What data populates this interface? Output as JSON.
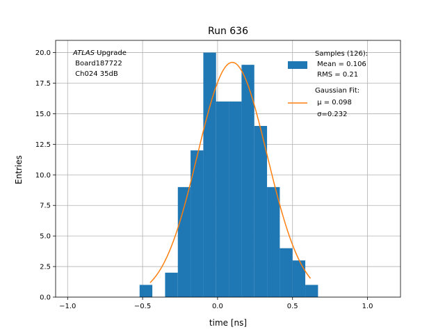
{
  "chart_data": {
    "type": "bar",
    "title": "Run 636",
    "xlabel": "time [ns]",
    "ylabel": "Entries",
    "xlim": [
      -1.08,
      1.22
    ],
    "ylim": [
      0,
      21
    ],
    "grid": true,
    "xticks": [
      -1.0,
      -0.5,
      0.0,
      0.5,
      1.0
    ],
    "xtick_labels": [
      "−1.0",
      "−0.5",
      "0.0",
      "0.5",
      "1.0"
    ],
    "yticks": [
      0,
      2.5,
      5,
      7.5,
      10,
      12.5,
      15,
      17.5,
      20
    ],
    "ytick_labels": [
      "0.0",
      "2.5",
      "5.0",
      "7.5",
      "10.0",
      "12.5",
      "15.0",
      "17.5",
      "20.0"
    ],
    "bin_edges": [
      -0.52,
      -0.435,
      -0.35,
      -0.265,
      -0.18,
      -0.095,
      -0.01,
      0.075,
      0.16,
      0.245,
      0.33,
      0.415,
      0.5,
      0.585,
      0.67
    ],
    "counts": [
      1,
      0,
      2,
      9,
      12,
      20,
      16,
      16,
      19,
      14,
      9,
      4,
      3,
      1
    ],
    "fit": {
      "mu": 0.098,
      "sigma": 0.232,
      "amplitude": 19.2,
      "x_range": [
        -0.45,
        0.62
      ]
    },
    "annotation_lines": [
      "ATLAS Upgrade",
      " Board187722",
      " Ch024 35dB"
    ],
    "annotation_italic_word": "ATLAS",
    "legend": {
      "position": "top-right",
      "hist_lines": [
        "Samples (126):",
        " Mean = 0.106",
        " RMS = 0.21"
      ],
      "fit_lines": [
        "Gaussian Fit:",
        " μ = 0.098",
        " σ=0.232"
      ]
    },
    "colors": {
      "hist": "#1f77b4",
      "fit": "#ff7f0e",
      "grid": "#b0b0b0"
    }
  }
}
